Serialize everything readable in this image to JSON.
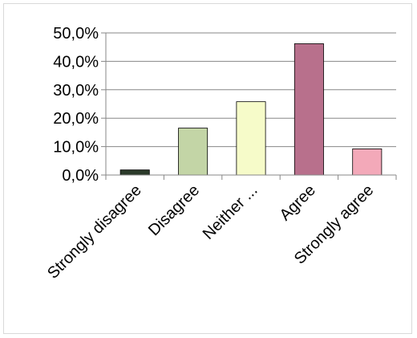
{
  "chart_data": {
    "type": "bar",
    "categories": [
      "Strongly disagree",
      "Disagree",
      "Neither ...",
      "Agree",
      "Strongly agree"
    ],
    "values": [
      1.8,
      16.5,
      25.8,
      46.2,
      9.2
    ],
    "colors": [
      "#2b3a2a",
      "#c3d5a6",
      "#f6fbc9",
      "#b8708c",
      "#f3a9b9"
    ],
    "y_ticks": [
      "0,0%",
      "10,0%",
      "20,0%",
      "30,0%",
      "40,0%",
      "50,0%"
    ],
    "ylim": [
      0,
      50
    ],
    "grid": true,
    "legend": "none",
    "title": "",
    "xlabel": "",
    "ylabel": ""
  }
}
